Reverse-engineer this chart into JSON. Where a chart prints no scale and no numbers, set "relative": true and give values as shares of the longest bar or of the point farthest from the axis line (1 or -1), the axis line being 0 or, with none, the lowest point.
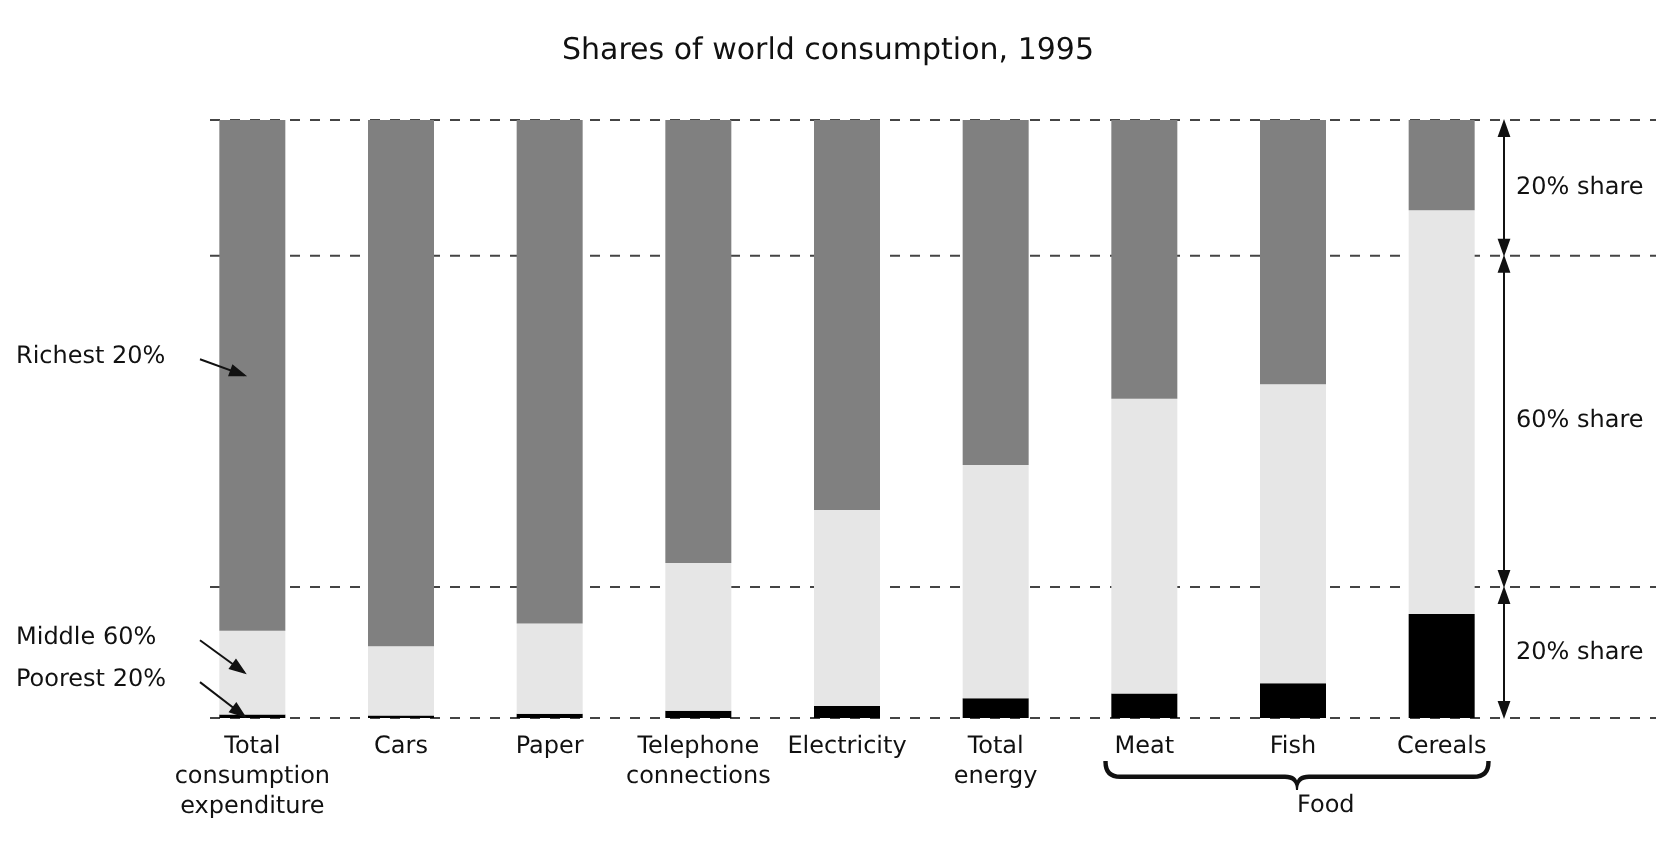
{
  "chart_data": {
    "type": "bar",
    "title": "Shares of world consumption, 1995",
    "stacked": true,
    "relative": true,
    "categories": [
      "Total consumption expenditure",
      "Cars",
      "Paper",
      "Telephone connections",
      "Electricity",
      "Total energy",
      "Meat",
      "Fish",
      "Cereals"
    ],
    "series": [
      {
        "name": "Poorest 20%",
        "color": "#000000",
        "values": [
          0.006,
          0.004,
          0.007,
          0.012,
          0.02,
          0.033,
          0.041,
          0.058,
          0.174
        ]
      },
      {
        "name": "Middle 60%",
        "color": "#e6e6e6",
        "values": [
          0.14,
          0.116,
          0.151,
          0.247,
          0.328,
          0.39,
          0.493,
          0.5,
          0.675
        ]
      },
      {
        "name": "Richest 20%",
        "color": "#808080",
        "values": [
          0.854,
          0.88,
          0.842,
          0.741,
          0.652,
          0.577,
          0.466,
          0.442,
          0.151
        ]
      }
    ],
    "ref_lines": [
      {
        "axis": "y",
        "value": 1,
        "line_style": "dashed"
      },
      {
        "axis": "y",
        "value": 0.773,
        "line_style": "dashed"
      },
      {
        "axis": "y",
        "value": 0.219,
        "line_style": "dashed"
      },
      {
        "axis": "y",
        "value": 0,
        "line_style": "dashed"
      }
    ],
    "annotations": [
      "20% share",
      "60% share",
      "20% share",
      "Food"
    ]
  }
}
